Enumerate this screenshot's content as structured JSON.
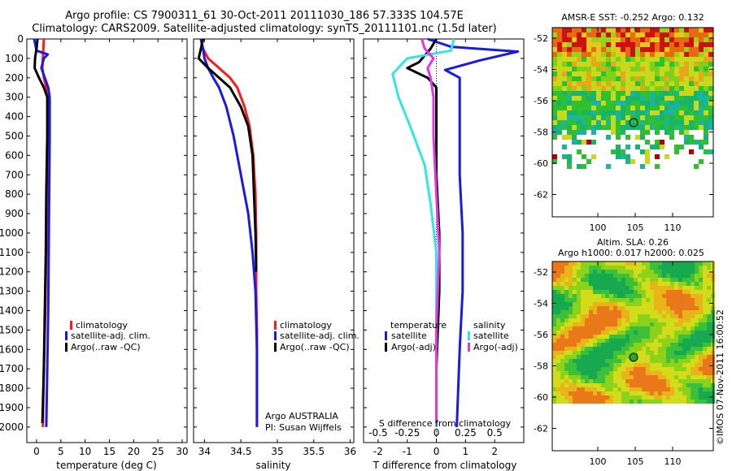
{
  "header": {
    "line1": "Argo profile: CS 7900311_61 30-Oct-2011 20111030_186 57.333S 104.57E",
    "line2": "Climatology: CARS2009. Satellite-adjusted climatology: synTS_20111101.nc (1.5d later)"
  },
  "colors": {
    "climatology": "#ff1a1a",
    "satellite": "#1a1ae6",
    "argo": "#000000",
    "satellite_s": "#33e6e6",
    "argo_s": "#e633e6"
  },
  "depth_ticks": [
    "0",
    "100",
    "200",
    "300",
    "400",
    "500",
    "600",
    "700",
    "800",
    "900",
    "1000",
    "1100",
    "1200",
    "1300",
    "1400",
    "1500",
    "1600",
    "1700",
    "1800",
    "1900",
    "2000"
  ],
  "chart_data": [
    {
      "type": "line",
      "panel": "temperature",
      "xlabel": "temperature (deg C)",
      "xlim": [
        -2,
        31
      ],
      "ylim": [
        2080,
        0
      ],
      "xticks": [
        "0",
        "5",
        "10",
        "15",
        "20",
        "25",
        "30"
      ],
      "xtick_values": [
        0,
        5,
        10,
        15,
        20,
        25,
        30
      ],
      "legend": [
        "climatology",
        "satellite-adj. clim.",
        "Argo(..raw -QC)"
      ],
      "series": [
        {
          "name": "climatology",
          "color_key": "climatology",
          "points": [
            [
              1.5,
              0
            ],
            [
              1.4,
              50
            ],
            [
              1.3,
              100
            ],
            [
              1.2,
              150
            ],
            [
              1.5,
              200
            ],
            [
              2.0,
              250
            ],
            [
              2.3,
              300
            ],
            [
              2.3,
              500
            ],
            [
              2.2,
              800
            ],
            [
              2.0,
              1100
            ],
            [
              1.8,
              1400
            ],
            [
              1.5,
              1700
            ],
            [
              1.3,
              2000
            ]
          ]
        },
        {
          "name": "satellite-adj. clim.",
          "color_key": "satellite",
          "points": [
            [
              -0.5,
              0
            ],
            [
              0.0,
              60
            ],
            [
              2.3,
              80
            ],
            [
              1.5,
              100
            ],
            [
              1.0,
              150
            ],
            [
              1.7,
              200
            ],
            [
              2.4,
              250
            ],
            [
              2.7,
              300
            ],
            [
              2.7,
              500
            ],
            [
              2.6,
              800
            ],
            [
              2.5,
              1100
            ],
            [
              2.4,
              1400
            ],
            [
              2.2,
              1700
            ],
            [
              2.0,
              2000
            ]
          ]
        },
        {
          "name": "Argo(..raw -QC)",
          "color_key": "argo",
          "points": [
            [
              0.2,
              0
            ],
            [
              0.0,
              50
            ],
            [
              -0.3,
              100
            ],
            [
              -0.4,
              150
            ],
            [
              0.5,
              200
            ],
            [
              1.5,
              250
            ],
            [
              2.2,
              300
            ],
            [
              2.2,
              500
            ],
            [
              2.0,
              800
            ],
            [
              1.9,
              1100
            ],
            [
              1.7,
              1400
            ],
            [
              1.5,
              1700
            ],
            [
              1.2,
              1980
            ]
          ]
        }
      ]
    },
    {
      "type": "line",
      "panel": "salinity",
      "xlabel": "salinity",
      "xlim": [
        33.85,
        36.05
      ],
      "ylim": [
        2080,
        0
      ],
      "xticks": [
        "34",
        "34.5",
        "35",
        "35.5",
        "36"
      ],
      "xtick_values": [
        34,
        34.5,
        35,
        35.5,
        36
      ],
      "legend": [
        "climatology",
        "satellite-adj. clim.",
        "Argo(..raw -QC)"
      ],
      "series": [
        {
          "name": "climatology",
          "color_key": "climatology",
          "points": [
            [
              33.95,
              0
            ],
            [
              33.98,
              50
            ],
            [
              34.05,
              100
            ],
            [
              34.2,
              150
            ],
            [
              34.35,
              200
            ],
            [
              34.45,
              250
            ],
            [
              34.55,
              350
            ],
            [
              34.62,
              450
            ],
            [
              34.67,
              600
            ],
            [
              34.7,
              800
            ],
            [
              34.71,
              1000
            ],
            [
              34.71,
              1300
            ],
            [
              34.72,
              1500
            ],
            [
              34.72,
              2000
            ]
          ]
        },
        {
          "name": "satellite-adj. clim.",
          "color_key": "satellite",
          "points": [
            [
              33.95,
              0
            ],
            [
              33.98,
              50
            ],
            [
              34.0,
              100
            ],
            [
              34.05,
              150
            ],
            [
              34.12,
              200
            ],
            [
              34.2,
              250
            ],
            [
              34.3,
              350
            ],
            [
              34.4,
              500
            ],
            [
              34.5,
              700
            ],
            [
              34.6,
              900
            ],
            [
              34.66,
              1100
            ],
            [
              34.7,
              1300
            ],
            [
              34.72,
              1600
            ],
            [
              34.72,
              2000
            ]
          ]
        },
        {
          "name": "Argo(..raw -QC)",
          "color_key": "argo",
          "points": [
            [
              33.98,
              0
            ],
            [
              33.95,
              50
            ],
            [
              33.92,
              100
            ],
            [
              34.05,
              150
            ],
            [
              34.2,
              200
            ],
            [
              34.35,
              250
            ],
            [
              34.5,
              350
            ],
            [
              34.6,
              450
            ],
            [
              34.66,
              600
            ],
            [
              34.68,
              800
            ],
            [
              34.7,
              1000
            ],
            [
              34.71,
              1200
            ]
          ]
        }
      ],
      "annotation": [
        "Argo AUSTRALIA",
        "PI: Susan Wijffels"
      ]
    },
    {
      "type": "line",
      "panel": "differences",
      "xlabel": "T difference from climatology",
      "xlabel_top": "S difference from climatology",
      "xlim": [
        -2.5,
        3.0
      ],
      "ylim": [
        2080,
        0
      ],
      "xticks_T": [
        "-2",
        "-1",
        "0",
        "1",
        "2"
      ],
      "xtick_values_T": [
        -2,
        -1,
        0,
        1,
        2
      ],
      "xticks_S": [
        "-0.5",
        "-0.25",
        "0",
        "0.25",
        "0.5"
      ],
      "xtick_values_S": [
        -0.5,
        -0.25,
        0,
        0.25,
        0.5
      ],
      "legend_temperature_title": "temperature",
      "legend_salinity_title": "salinity",
      "legend_temperature": [
        "satellite",
        "Argo(-adj)"
      ],
      "legend_salinity": [
        "satellite",
        "Argo(-adj)"
      ],
      "series": [
        {
          "name": "satellite",
          "color_key": "satellite",
          "points": [
            [
              -0.3,
              0
            ],
            [
              0.5,
              40
            ],
            [
              2.8,
              65
            ],
            [
              1.5,
              110
            ],
            [
              0.3,
              160
            ],
            [
              0.8,
              200
            ],
            [
              0.8,
              300
            ],
            [
              0.8,
              500
            ],
            [
              0.8,
              700
            ],
            [
              0.9,
              1000
            ],
            [
              0.9,
              1300
            ],
            [
              0.8,
              1600
            ],
            [
              0.7,
              2000
            ]
          ]
        },
        {
          "name": "Argo(-adj)",
          "color_key": "argo",
          "points": [
            [
              0.0,
              0
            ],
            [
              -0.2,
              50
            ],
            [
              -0.6,
              120
            ],
            [
              -1.0,
              150
            ],
            [
              -0.3,
              200
            ],
            [
              0.0,
              250
            ],
            [
              0.0,
              400
            ],
            [
              0.0,
              700
            ],
            [
              0.1,
              1000
            ],
            [
              0.1,
              1300
            ],
            [
              0.0,
              1700
            ],
            [
              0.0,
              1980
            ]
          ]
        },
        {
          "name": "satellite",
          "color_key": "satellite_s",
          "points": [
            [
              0.6,
              0
            ],
            [
              0.5,
              60
            ],
            [
              -1.0,
              100
            ],
            [
              -1.5,
              180
            ],
            [
              -1.3,
              300
            ],
            [
              -0.9,
              450
            ],
            [
              -0.4,
              650
            ],
            [
              -0.2,
              850
            ],
            [
              0.0,
              1100
            ],
            [
              0.0,
              1500
            ],
            [
              0.0,
              2000
            ]
          ]
        },
        {
          "name": "Argo(-adj)",
          "color_key": "argo_s",
          "points": [
            [
              -0.5,
              0
            ],
            [
              -0.4,
              50
            ],
            [
              -0.1,
              100
            ],
            [
              -0.3,
              150
            ],
            [
              -0.2,
              200
            ],
            [
              -0.1,
              300
            ],
            [
              -0.1,
              500
            ],
            [
              0.0,
              800
            ],
            [
              0.1,
              1100
            ],
            [
              0.0,
              1500
            ],
            [
              0.0,
              1980
            ]
          ]
        }
      ]
    }
  ],
  "maps": {
    "sst": {
      "title": "AMSR-E SST: -0.252 Argo: 0.132",
      "yticks": [
        "-52",
        "-54",
        "-56",
        "-58",
        "-60",
        "-62"
      ],
      "xticks": [
        "100",
        "105",
        "110"
      ]
    },
    "sla": {
      "title_line1": "Altim. SLA: 0.26",
      "title_line2": "Argo h1000: 0.017 h2000: 0.025",
      "yticks": [
        "-52",
        "-54",
        "-56",
        "-58",
        "-60",
        "-62"
      ],
      "xticks": [
        "100",
        "105",
        "110"
      ]
    }
  },
  "credit": "©IMOS 07-Nov-2011 16:00:52"
}
